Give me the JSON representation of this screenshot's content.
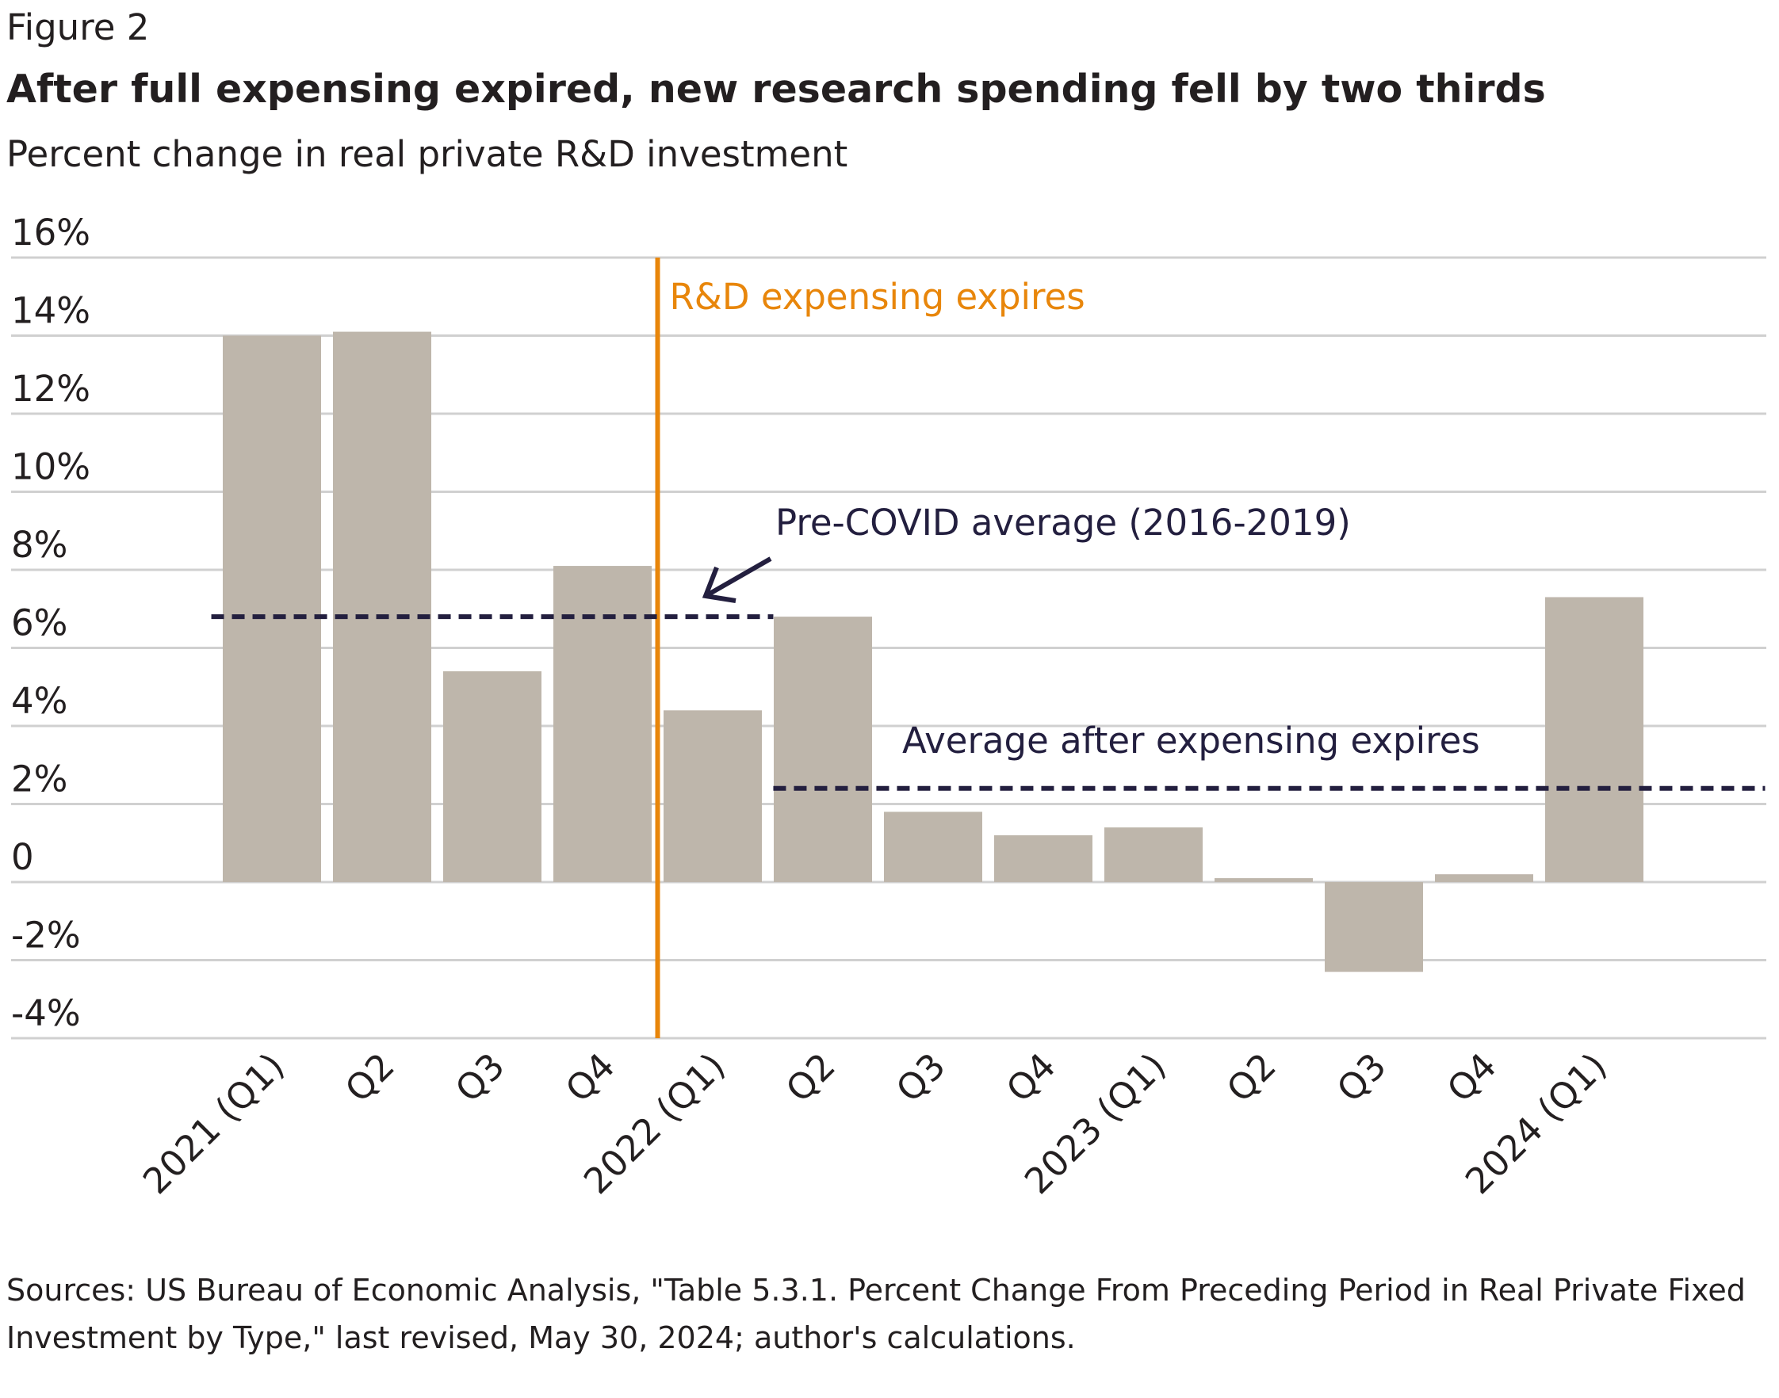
{
  "figure_label": "Figure 2",
  "title": "After full expensing expired, new research spending fell by two thirds",
  "subtitle": "Percent change in real private R&D investment",
  "source": "Sources: US Bureau of Economic Analysis, \"Table 5.3.1. Percent Change From Preceding Period in Real Private Fixed Investment by Type,\" last revised, May 30, 2024; author's calculations.",
  "chart_data": {
    "type": "bar",
    "categories": [
      "2021 (Q1)",
      "Q2",
      "Q3",
      "Q4",
      "2022 (Q1)",
      "Q2",
      "Q3",
      "Q4",
      "2023 (Q1)",
      "Q2",
      "Q3",
      "Q4",
      "2024 (Q1)"
    ],
    "values": [
      14.0,
      14.1,
      5.4,
      8.1,
      4.4,
      6.8,
      1.8,
      1.2,
      1.4,
      0.1,
      -2.3,
      0.2,
      7.3
    ],
    "ylim": [
      -4,
      16
    ],
    "y_ticks": [
      {
        "value": 16,
        "label": "16%"
      },
      {
        "value": 14,
        "label": "14%"
      },
      {
        "value": 12,
        "label": "12%"
      },
      {
        "value": 10,
        "label": "10%"
      },
      {
        "value": 8,
        "label": "8%"
      },
      {
        "value": 6,
        "label": "6%"
      },
      {
        "value": 4,
        "label": "4%"
      },
      {
        "value": 2,
        "label": "2%"
      },
      {
        "value": 0,
        "label": "0"
      },
      {
        "value": -2,
        "label": "-2%"
      },
      {
        "value": -4,
        "label": "-4%"
      }
    ],
    "grid": true,
    "bar_color": "#beb6ab",
    "annotations": {
      "expiry_line": {
        "label": "R&D expensing expires",
        "color": "#e8860b",
        "between_categories": [
          3,
          4
        ]
      },
      "pre_covid_avg": {
        "label": "Pre-COVID average (2016-2019)",
        "value": 6.8,
        "from_category": -0.55,
        "to_category": 4.55
      },
      "post_avg": {
        "label": "Average after expensing expires",
        "value": 2.4,
        "from_category": 4.55,
        "to_category": 13.55
      }
    },
    "colors": {
      "annotation": "#231f3f",
      "grid": "#d0d0d0"
    }
  }
}
